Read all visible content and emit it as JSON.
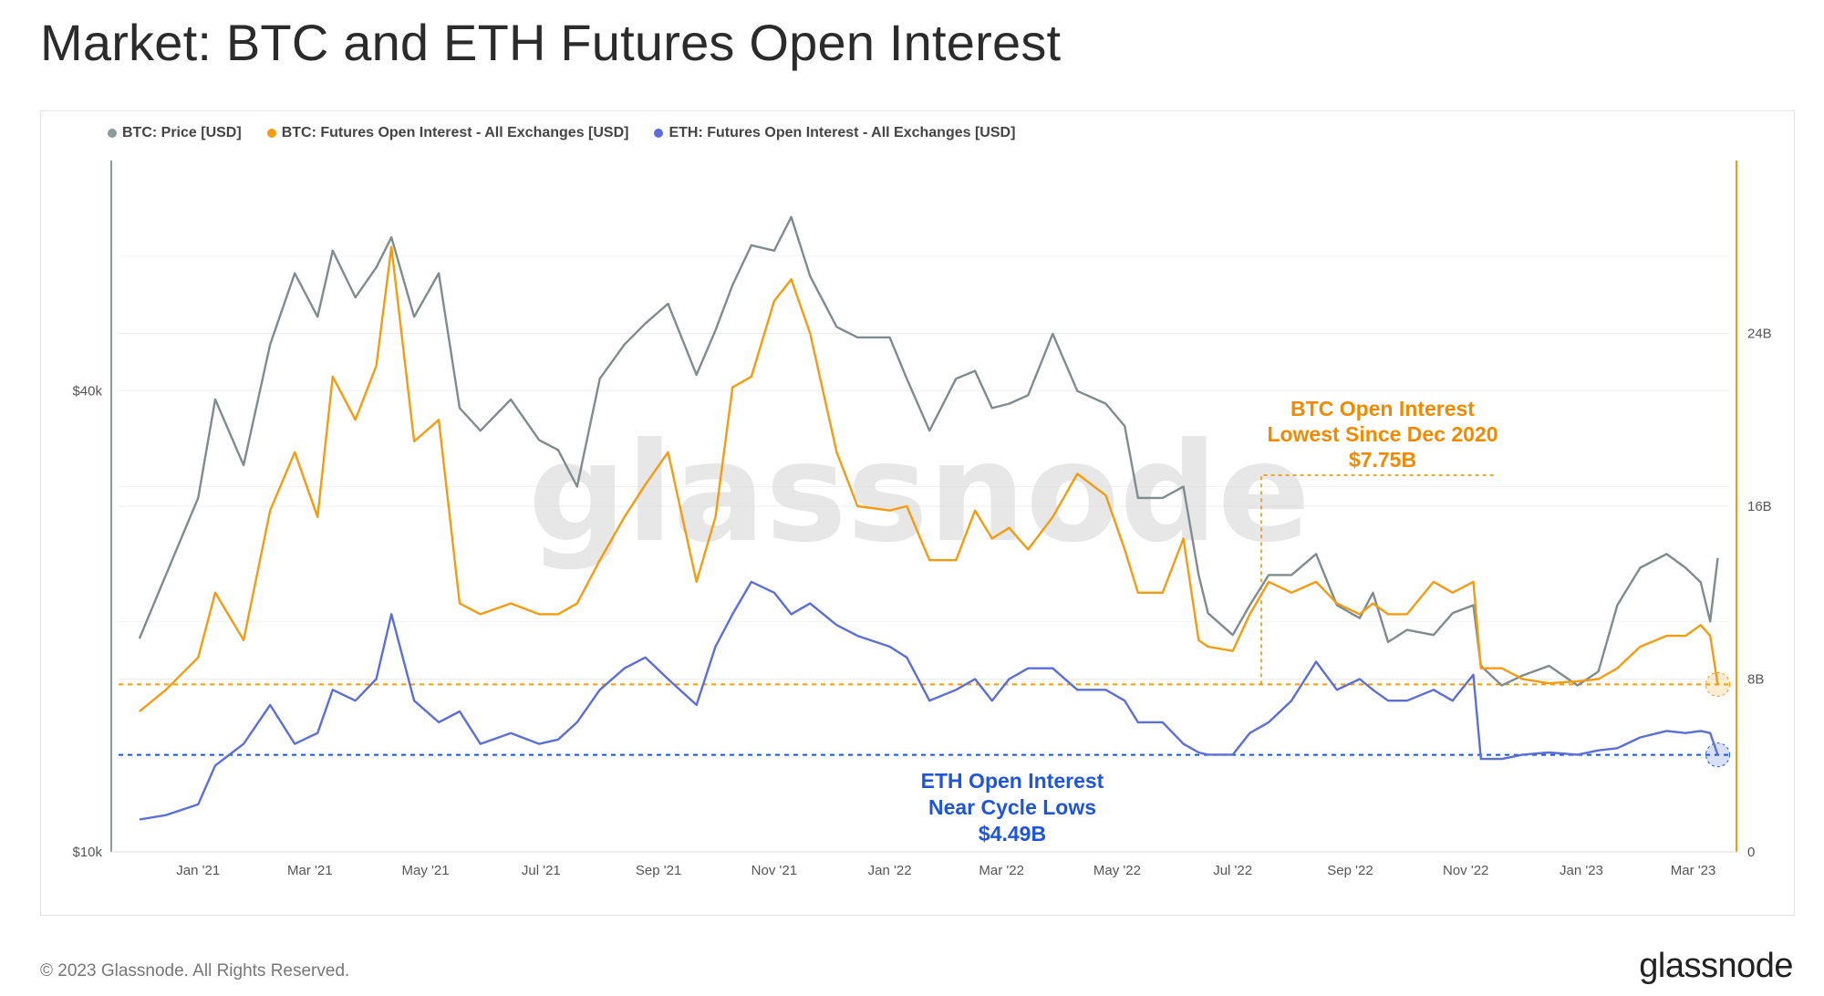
{
  "title": "Market: BTC and ETH Futures Open Interest",
  "footer": "© 2023 Glassnode. All Rights Reserved.",
  "brand": "glassnode",
  "watermark": "glassnode",
  "colors": {
    "btc_price": "#7f8c8d",
    "btc_oi": "#f39c12",
    "eth_oi": "#5b6fd6",
    "btc_ann": "#f08a00",
    "eth_ann": "#1f55d6"
  },
  "legend": [
    {
      "label": "BTC: Price [USD]",
      "color": "#8c9b9b"
    },
    {
      "label": "BTC: Futures Open Interest - All Exchanges [USD]",
      "color": "#f39c12"
    },
    {
      "label": "ETH: Futures Open Interest - All Exchanges [USD]",
      "color": "#5b6fd6"
    }
  ],
  "annotations": {
    "btc": [
      "BTC Open Interest",
      "Lowest Since Dec 2020",
      "$7.75B"
    ],
    "eth": [
      "ETH Open Interest",
      "Near Cycle Lows",
      "$4.49B"
    ]
  },
  "chart_data": {
    "type": "line",
    "x": [
      "2020-12-01",
      "2020-12-15",
      "2021-01-01",
      "2021-01-10",
      "2021-01-25",
      "2021-02-08",
      "2021-02-21",
      "2021-03-05",
      "2021-03-13",
      "2021-03-25",
      "2021-04-05",
      "2021-04-13",
      "2021-04-25",
      "2021-05-08",
      "2021-05-19",
      "2021-05-30",
      "2021-06-15",
      "2021-06-30",
      "2021-07-10",
      "2021-07-20",
      "2021-08-01",
      "2021-08-14",
      "2021-08-25",
      "2021-09-06",
      "2021-09-21",
      "2021-10-01",
      "2021-10-10",
      "2021-10-20",
      "2021-11-01",
      "2021-11-10",
      "2021-11-20",
      "2021-12-04",
      "2021-12-15",
      "2022-01-01",
      "2022-01-10",
      "2022-01-22",
      "2022-02-05",
      "2022-02-15",
      "2022-02-24",
      "2022-03-05",
      "2022-03-15",
      "2022-03-28",
      "2022-04-10",
      "2022-04-25",
      "2022-05-05",
      "2022-05-12",
      "2022-05-25",
      "2022-06-05",
      "2022-06-13",
      "2022-06-18",
      "2022-07-01",
      "2022-07-10",
      "2022-07-20",
      "2022-08-01",
      "2022-08-14",
      "2022-08-25",
      "2022-09-06",
      "2022-09-13",
      "2022-09-21",
      "2022-10-01",
      "2022-10-15",
      "2022-10-25",
      "2022-11-05",
      "2022-11-09",
      "2022-11-20",
      "2022-12-01",
      "2022-12-15",
      "2022-12-30",
      "2023-01-10",
      "2023-01-20",
      "2023-02-01",
      "2023-02-15",
      "2023-02-25",
      "2023-03-05",
      "2023-03-10",
      "2023-03-14"
    ],
    "x_ticks": [
      "Jan '21",
      "Mar '21",
      "May '21",
      "Jul '21",
      "Sep '21",
      "Nov '21",
      "Jan '22",
      "Mar '22",
      "May '22",
      "Jul '22",
      "Sep '22",
      "Nov '22",
      "Jan '23",
      "Mar '23"
    ],
    "y_left_ticks": [
      "$10k",
      "$40k"
    ],
    "y_left_scale": "log",
    "y_left_range": [
      10000,
      80000
    ],
    "y_right_ticks": [
      "0",
      "8B",
      "16B",
      "24B"
    ],
    "y_right_range": [
      0,
      32
    ],
    "y_right_unit": "B USD",
    "series": [
      {
        "name": "BTC: Price [USD]",
        "axis": "left",
        "values": [
          19000,
          23000,
          29000,
          39000,
          32000,
          46000,
          57000,
          50000,
          61000,
          53000,
          58000,
          63500,
          50000,
          57000,
          38000,
          35500,
          39000,
          34500,
          33500,
          30000,
          41500,
          46000,
          49000,
          52000,
          42000,
          48000,
          55000,
          62000,
          61000,
          67500,
          56500,
          48500,
          47000,
          47000,
          41500,
          35500,
          41500,
          42500,
          38000,
          38500,
          39500,
          47500,
          40000,
          38500,
          36000,
          29000,
          29000,
          30000,
          23000,
          20500,
          19200,
          21000,
          23000,
          23000,
          24500,
          21000,
          20200,
          21800,
          18800,
          19500,
          19200,
          20500,
          21000,
          17500,
          16500,
          17000,
          17500,
          16500,
          17200,
          21000,
          23500,
          24500,
          23500,
          22500,
          20000,
          24200
        ]
      },
      {
        "name": "BTC: Futures Open Interest - All Exchanges [USD]",
        "axis": "right",
        "values": [
          6.5,
          7.5,
          9.0,
          12.0,
          9.8,
          15.8,
          18.5,
          15.5,
          22.0,
          20.0,
          22.5,
          28.0,
          19.0,
          20.0,
          11.5,
          11.0,
          11.5,
          11.0,
          11.0,
          11.5,
          13.5,
          15.5,
          17.0,
          18.5,
          12.5,
          15.5,
          21.5,
          22.0,
          25.5,
          26.5,
          24.0,
          18.5,
          16.0,
          15.8,
          16.0,
          13.5,
          13.5,
          15.8,
          14.5,
          15.0,
          14.0,
          15.5,
          17.5,
          16.5,
          14.0,
          12.0,
          12.0,
          14.5,
          9.8,
          9.5,
          9.3,
          11.0,
          12.5,
          12.0,
          12.5,
          11.5,
          11.0,
          11.5,
          11.0,
          11.0,
          12.5,
          12.0,
          12.5,
          8.5,
          8.5,
          8.0,
          7.8,
          7.9,
          8.0,
          8.5,
          9.5,
          10.0,
          10.0,
          10.5,
          10.0,
          7.75
        ]
      },
      {
        "name": "ETH: Futures Open Interest - All Exchanges [USD]",
        "axis": "right",
        "values": [
          1.5,
          1.7,
          2.2,
          4.0,
          5.0,
          6.8,
          5.0,
          5.5,
          7.5,
          7.0,
          8.0,
          11.0,
          7.0,
          6.0,
          6.5,
          5.0,
          5.5,
          5.0,
          5.2,
          6.0,
          7.5,
          8.5,
          9.0,
          8.0,
          6.8,
          9.5,
          11.0,
          12.5,
          12.0,
          11.0,
          11.5,
          10.5,
          10.0,
          9.5,
          9.0,
          7.0,
          7.5,
          8.0,
          7.0,
          8.0,
          8.5,
          8.5,
          7.5,
          7.5,
          7.0,
          6.0,
          6.0,
          5.0,
          4.6,
          4.5,
          4.5,
          5.5,
          6.0,
          7.0,
          8.8,
          7.5,
          8.0,
          7.5,
          7.0,
          7.0,
          7.5,
          7.0,
          8.2,
          4.3,
          4.3,
          4.5,
          4.6,
          4.5,
          4.7,
          4.8,
          5.3,
          5.6,
          5.5,
          5.6,
          5.5,
          4.49
        ]
      }
    ],
    "reference_lines": [
      {
        "axis": "right",
        "value": 7.75,
        "color": "#f39c12"
      },
      {
        "axis": "right",
        "value": 4.49,
        "color": "#1f55d6"
      }
    ],
    "grid": true,
    "legend_position": "top-left"
  }
}
